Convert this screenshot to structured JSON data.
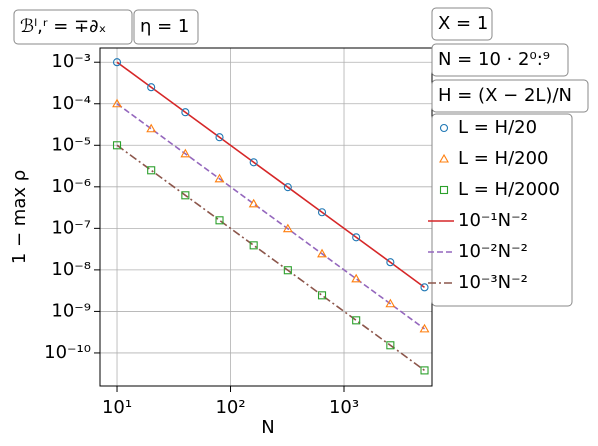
{
  "chart_data": {
    "type": "line",
    "xlabel": "N",
    "ylabel": "1 − max ρ",
    "annotations": [
      "ℬˡ,ʳ = ∓∂ₓ",
      "η = 1",
      "X = 1",
      "N = 10 · 2⁰:⁹",
      "H = (X − 2L)/N"
    ],
    "log_x": true,
    "log_y": true,
    "grid": true,
    "legend": "right",
    "x": [
      10,
      20,
      40,
      80,
      160,
      320,
      640,
      1280,
      2560,
      5120
    ],
    "xlim": [
      7.08,
      5960
    ],
    "ylim": [
      1.6e-11,
      0.0022
    ],
    "xticks": [
      {
        "value": 10,
        "label": "10¹"
      },
      {
        "value": 100,
        "label": "10²"
      },
      {
        "value": 1000,
        "label": "10³"
      }
    ],
    "yticks": [
      {
        "value": 0.001,
        "label": "10⁻³"
      },
      {
        "value": 0.0001,
        "label": "10⁻⁴"
      },
      {
        "value": 1e-05,
        "label": "10⁻⁵"
      },
      {
        "value": 1e-06,
        "label": "10⁻⁶"
      },
      {
        "value": 1e-07,
        "label": "10⁻⁷"
      },
      {
        "value": 1e-08,
        "label": "10⁻⁸"
      },
      {
        "value": 1e-09,
        "label": "10⁻⁹"
      },
      {
        "value": 1e-10,
        "label": "10⁻¹⁰"
      }
    ],
    "series": [
      {
        "name": "L = H/20",
        "type": "scatter",
        "marker": "circle",
        "color": "#1f77b4",
        "values": [
          0.001,
          0.00025,
          6.25e-05,
          1.5625e-05,
          3.9e-06,
          9.8e-07,
          2.44e-07,
          6.1e-08,
          1.53e-08,
          3.8e-09
        ]
      },
      {
        "name": "L = H/200",
        "type": "scatter",
        "marker": "triangle",
        "color": "#ff7f0e",
        "values": [
          0.0001,
          2.5e-05,
          6.25e-06,
          1.5625e-06,
          3.9e-07,
          9.8e-08,
          2.44e-08,
          6.1e-09,
          1.53e-09,
          3.8e-10
        ]
      },
      {
        "name": "L = H/2000",
        "type": "scatter",
        "marker": "square",
        "color": "#2ca02c",
        "values": [
          1e-05,
          2.5e-06,
          6.25e-07,
          1.5625e-07,
          3.9e-08,
          9.8e-09,
          2.44e-09,
          6.1e-10,
          1.53e-10,
          3.8e-11
        ]
      },
      {
        "name": "10⁻¹N⁻²",
        "type": "line",
        "dash": "solid",
        "color": "#d62728",
        "values": [
          0.001,
          0.00025,
          6.25e-05,
          1.5625e-05,
          3.9e-06,
          9.8e-07,
          2.44e-07,
          6.1e-08,
          1.53e-08,
          3.8e-09
        ]
      },
      {
        "name": "10⁻²N⁻²",
        "type": "line",
        "dash": "dashed",
        "color": "#9467bd",
        "values": [
          0.0001,
          2.5e-05,
          6.25e-06,
          1.5625e-06,
          3.9e-07,
          9.8e-08,
          2.44e-08,
          6.1e-09,
          1.53e-09,
          3.8e-10
        ]
      },
      {
        "name": "10⁻³N⁻²",
        "type": "line",
        "dash": "dashdot",
        "color": "#8c564b",
        "values": [
          1e-05,
          2.5e-06,
          6.25e-07,
          1.5625e-07,
          3.9e-08,
          9.8e-09,
          2.44e-09,
          6.1e-10,
          1.53e-10,
          3.8e-11
        ]
      }
    ]
  }
}
